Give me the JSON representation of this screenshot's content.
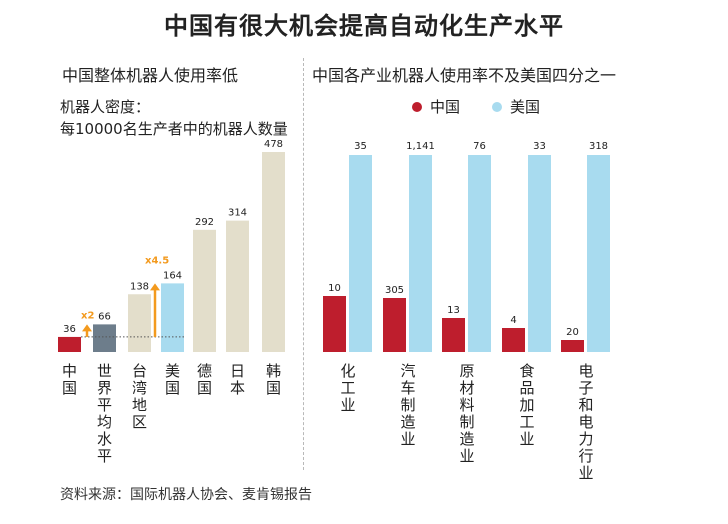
{
  "title": "中国有很大机会提高自动化生产水平",
  "left_subtitle": "中国整体机器人使用率低",
  "right_subtitle": "中国各产业机器人使用率不及美国四分之一",
  "density_label_line1": "机器人密度：",
  "density_label_line2": "每10000名生产者中的机器人数量",
  "legend": {
    "china": "中国",
    "usa": "美国"
  },
  "source": "资料来源：国际机器人协会、麦肯锡报告",
  "colors": {
    "china_red": "#be1e2d",
    "usa_blue": "#a8dbef",
    "world_gray": "#6d7d8b",
    "other_beige": "#e3decb",
    "arrow_orange": "#f39a1e"
  },
  "chart_data": [
    {
      "type": "bar",
      "title": "中国整体机器人使用率低",
      "ylabel": "机器人密度：每10000名生产者中的机器人数量",
      "categories": [
        "中国",
        "世界平均水平",
        "台湾地区",
        "美国",
        "德国",
        "日本",
        "韩国"
      ],
      "values": [
        36,
        66,
        138,
        164,
        292,
        314,
        478
      ],
      "value_labels": [
        "36",
        "66",
        "138",
        "164",
        "292",
        "314",
        "478"
      ],
      "bar_colors": [
        "#be1e2d",
        "#6d7d8b",
        "#e3decb",
        "#a8dbef",
        "#e3decb",
        "#e3decb",
        "#e3decb"
      ],
      "annotations": [
        {
          "text": "x2",
          "from": "中国",
          "to": "世界平均水平"
        },
        {
          "text": "x4.5",
          "from": "中国",
          "to": "美国"
        }
      ],
      "ylim": [
        0,
        478
      ]
    },
    {
      "type": "bar",
      "title": "中国各产业机器人使用率不及美国四分之一",
      "categories": [
        "化工业",
        "汽车制造业",
        "原材料制造业",
        "食品加工业",
        "电子和电力行业"
      ],
      "series": [
        {
          "name": "中国",
          "values": [
            10,
            305,
            13,
            4,
            20
          ],
          "value_labels": [
            "10",
            "305",
            "13",
            "4",
            "20"
          ]
        },
        {
          "name": "美国",
          "values": [
            35,
            1141,
            76,
            33,
            318
          ],
          "value_labels": [
            "35",
            "1,141",
            "76",
            "33",
            "318"
          ]
        }
      ],
      "note": "bar heights are not drawn to a common scale"
    }
  ]
}
